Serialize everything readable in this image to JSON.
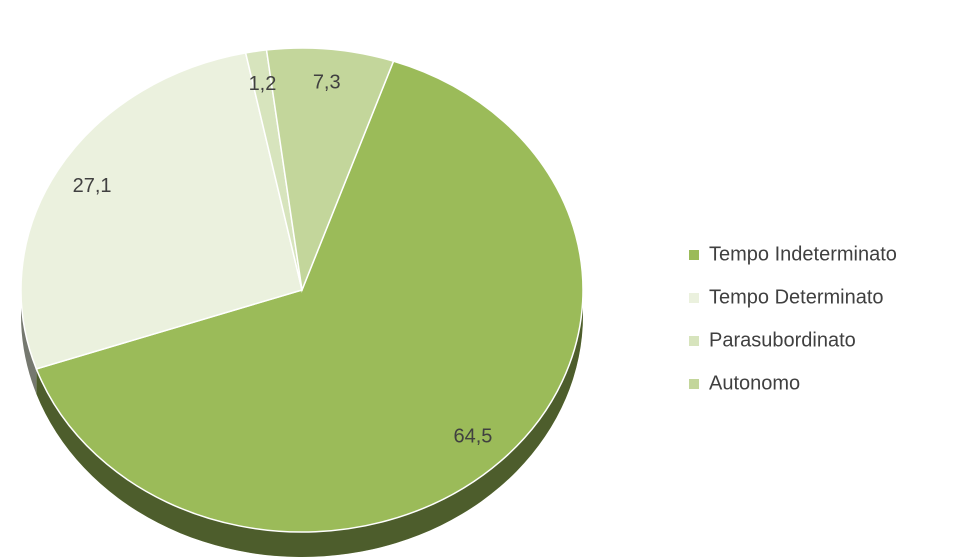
{
  "chart_data": {
    "type": "pie",
    "categories": [
      "Tempo Indeterminato",
      "Tempo Determinato",
      "Parasubordinato",
      "Autonomo"
    ],
    "values": [
      64.5,
      27.1,
      1.2,
      7.3
    ],
    "value_labels": [
      "64,5",
      "27,1",
      "1,2",
      "7,3"
    ],
    "colors": [
      "#9bbb59",
      "#ebf1de",
      "#d7e4bd",
      "#c3d69b"
    ],
    "legend": "right"
  }
}
